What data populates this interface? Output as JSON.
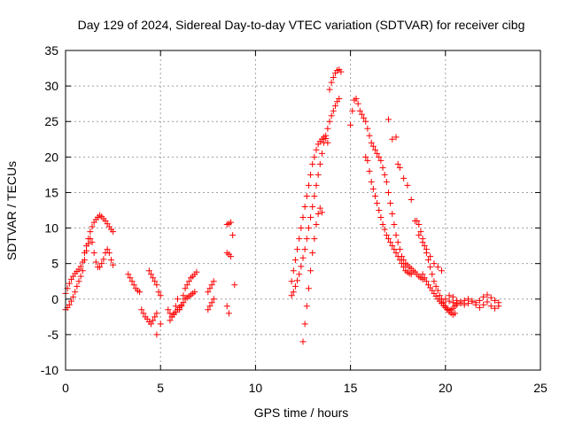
{
  "chart_data": {
    "type": "scatter",
    "title": "Day 129 of 2024, Sidereal Day-to-day VTEC variation (SDTVAR) for receiver cibg",
    "xlabel": "GPS time / hours",
    "ylabel": "SDTVAR / TECUs",
    "xlim": [
      0,
      25
    ],
    "ylim": [
      -10,
      35
    ],
    "xticks": [
      0,
      5,
      10,
      15,
      20,
      25
    ],
    "yticks": [
      -10,
      -5,
      0,
      5,
      10,
      15,
      20,
      25,
      30,
      35
    ],
    "grid": true,
    "marker": "+",
    "color": "#ff0000",
    "series": [
      {
        "name": "s01",
        "x": [
          0.0,
          0.1,
          0.2,
          0.3,
          0.4,
          0.5,
          0.6,
          0.7,
          0.8,
          0.9,
          1.0,
          1.1,
          1.2,
          1.3,
          1.4,
          1.5,
          1.6,
          1.7,
          1.8,
          1.9,
          2.0,
          2.1,
          2.2,
          2.3,
          2.4,
          2.5
        ],
        "y": [
          0.8,
          1.5,
          2.2,
          2.8,
          3.2,
          3.6,
          3.9,
          4.2,
          4.6,
          5.2,
          6.5,
          7.5,
          8.5,
          9.5,
          10.2,
          10.8,
          11.2,
          11.5,
          11.8,
          11.6,
          11.3,
          11.0,
          10.6,
          10.2,
          9.8,
          9.5
        ]
      },
      {
        "name": "s02",
        "x": [
          0.0,
          0.1,
          0.2,
          0.3,
          0.4,
          0.5,
          0.6,
          0.7,
          0.8,
          0.9,
          1.0,
          1.1,
          1.2,
          1.3,
          1.4,
          1.5,
          1.6,
          1.7,
          1.8,
          1.9,
          2.0,
          2.1,
          2.2,
          2.3,
          2.4,
          2.5
        ],
        "y": [
          -1.5,
          -1.2,
          -0.8,
          -0.3,
          0.3,
          1.0,
          1.8,
          2.5,
          3.2,
          4.0,
          5.5,
          6.8,
          7.8,
          8.5,
          8.0,
          6.5,
          5.2,
          4.5,
          4.5,
          5.0,
          5.6,
          6.5,
          7.0,
          6.5,
          5.5,
          4.8
        ]
      },
      {
        "name": "s03",
        "x": [
          3.3,
          3.4,
          3.5,
          3.6,
          3.7,
          3.8,
          3.9,
          4.0,
          4.1,
          4.2,
          4.3,
          4.4,
          4.5,
          4.6,
          4.7,
          4.8
        ],
        "y": [
          3.5,
          3.0,
          2.5,
          2.0,
          1.5,
          1.2,
          1.0,
          -1.5,
          -2.0,
          -2.5,
          -2.8,
          -3.2,
          -3.5,
          -3.0,
          -2.5,
          -2.0
        ]
      },
      {
        "name": "s04",
        "x": [
          4.4,
          4.5,
          4.6,
          4.7,
          4.8,
          4.9,
          5.0
        ],
        "y": [
          4.0,
          3.5,
          3.0,
          2.5,
          2.0,
          1.0,
          0.5
        ]
      },
      {
        "name": "s05",
        "x": [
          4.8,
          5.0
        ],
        "y": [
          -5.0,
          -3.5
        ]
      },
      {
        "name": "s06",
        "x": [
          5.4,
          5.5,
          5.6,
          5.7,
          5.8,
          5.9,
          6.0,
          6.1,
          6.2,
          6.3,
          6.4,
          6.5,
          6.6,
          6.7,
          6.8,
          6.9
        ],
        "y": [
          -1.5,
          -2.0,
          -2.5,
          -2.0,
          -1.0,
          0.0,
          -1.5,
          -1.0,
          0.5,
          1.5,
          2.0,
          2.5,
          3.0,
          3.2,
          3.5,
          3.8
        ]
      },
      {
        "name": "s07",
        "x": [
          5.5,
          5.6,
          5.7,
          5.8,
          5.9,
          6.0,
          6.1,
          6.2,
          6.3,
          6.4,
          6.5,
          6.6,
          6.7,
          6.8
        ],
        "y": [
          -3.0,
          -2.5,
          -2.2,
          -1.8,
          -1.5,
          -1.2,
          -0.8,
          -0.5,
          0.0,
          0.2,
          0.4,
          0.6,
          0.8,
          1.0
        ]
      },
      {
        "name": "s08",
        "x": [
          7.5,
          7.6,
          7.7,
          7.8
        ],
        "y": [
          1.0,
          1.5,
          2.0,
          2.5
        ]
      },
      {
        "name": "s09",
        "x": [
          7.5,
          7.6,
          7.7,
          7.8
        ],
        "y": [
          -1.5,
          -1.0,
          -0.5,
          0.0
        ]
      },
      {
        "name": "s10",
        "x": [
          8.5,
          8.6,
          8.7,
          8.8,
          8.9
        ],
        "y": [
          10.5,
          10.6,
          10.8,
          9.0,
          2.0
        ]
      },
      {
        "name": "s11",
        "x": [
          8.5,
          8.6,
          8.7
        ],
        "y": [
          6.5,
          6.3,
          6.0
        ]
      },
      {
        "name": "s12",
        "x": [
          8.5,
          8.6
        ],
        "y": [
          -1.0,
          -2.0
        ]
      },
      {
        "name": "s13",
        "x": [
          11.9,
          12.0,
          12.1,
          12.2,
          12.3,
          12.4,
          12.5,
          12.6,
          12.7,
          12.8,
          12.9,
          13.0,
          13.1,
          13.2,
          13.3,
          13.4,
          13.5,
          13.6,
          13.7,
          13.8,
          13.9,
          14.0,
          14.1,
          14.2,
          14.3,
          14.4
        ],
        "y": [
          0.5,
          1.0,
          1.8,
          2.6,
          3.5,
          4.6,
          5.8,
          7.0,
          8.5,
          10.0,
          11.5,
          13.0,
          14.5,
          16.0,
          17.5,
          19.0,
          20.5,
          22.0,
          23.0,
          24.0,
          25.0,
          25.8,
          26.5,
          27.2,
          27.8,
          28.2
        ]
      },
      {
        "name": "s14",
        "x": [
          11.9,
          12.0,
          12.1,
          12.2,
          12.3,
          12.4,
          12.5,
          12.6,
          12.7,
          12.8,
          12.9,
          13.0,
          13.1,
          13.2,
          13.3,
          13.4,
          13.5,
          13.6,
          13.7,
          13.8
        ],
        "y": [
          2.5,
          4.0,
          5.5,
          7.0,
          8.5,
          10.0,
          11.5,
          13.0,
          14.5,
          16.0,
          17.5,
          19.0,
          20.0,
          21.0,
          21.8,
          22.2,
          22.5,
          22.8,
          22.6,
          22.0
        ]
      },
      {
        "name": "s15",
        "x": [
          12.5,
          12.6,
          12.7,
          12.8,
          12.9,
          13.0,
          13.1,
          13.2,
          13.3,
          13.4,
          13.5
        ],
        "y": [
          -6.0,
          -3.5,
          -1.0,
          1.5,
          4.0,
          6.5,
          8.5,
          10.5,
          12.0,
          12.8,
          12.2
        ]
      },
      {
        "name": "s16",
        "x": [
          13.9,
          14.0,
          14.1,
          14.2,
          14.3,
          14.4,
          14.5
        ],
        "y": [
          29.5,
          30.5,
          31.2,
          31.8,
          32.2,
          32.3,
          32.0
        ]
      },
      {
        "name": "s17",
        "x": [
          15.0,
          15.1,
          15.2,
          15.3,
          15.4,
          15.5,
          15.6,
          15.7,
          15.8,
          15.9,
          16.0,
          16.1,
          16.2,
          16.3,
          16.4,
          16.5,
          16.6,
          16.7,
          16.8,
          16.9,
          17.0,
          17.1,
          17.2,
          17.3,
          17.4,
          17.5,
          17.6,
          17.7,
          17.8,
          17.9,
          18.0,
          18.1,
          18.2,
          18.3,
          18.4,
          18.5,
          18.6,
          18.7,
          18.8
        ],
        "y": [
          24.5,
          26.5,
          28.0,
          28.2,
          27.5,
          26.5,
          26.0,
          25.5,
          25.0,
          24.0,
          23.0,
          22.0,
          21.5,
          21.0,
          20.5,
          20.0,
          19.5,
          18.5,
          17.5,
          16.5,
          15.0,
          13.5,
          12.0,
          10.5,
          9.0,
          8.0,
          7.0,
          6.0,
          5.5,
          5.0,
          4.8,
          4.5,
          4.3,
          4.0,
          3.8,
          3.5,
          3.2,
          3.0,
          2.8
        ]
      },
      {
        "name": "s18",
        "x": [
          15.8,
          15.9,
          16.0,
          16.1,
          16.2,
          16.3,
          16.4,
          16.5,
          16.6,
          16.7,
          16.8,
          16.9,
          17.0,
          17.1,
          17.2,
          17.3,
          17.4,
          17.5,
          17.6,
          17.7,
          17.8,
          17.9,
          18.0,
          18.1,
          18.2
        ],
        "y": [
          20.0,
          19.5,
          18.0,
          16.5,
          15.5,
          14.5,
          13.5,
          12.5,
          11.5,
          10.5,
          9.8,
          9.0,
          8.5,
          8.0,
          7.5,
          7.0,
          6.5,
          6.0,
          5.5,
          5.0,
          4.5,
          4.0,
          3.8,
          3.6,
          3.5
        ]
      },
      {
        "name": "s19",
        "x": [
          17.0,
          17.2,
          17.4,
          17.5,
          17.6,
          17.8,
          18.0,
          18.2,
          18.4,
          18.6,
          18.8,
          19.0,
          19.2,
          19.4,
          19.6,
          19.8
        ],
        "y": [
          25.3,
          22.5,
          22.8,
          19.0,
          18.5,
          17.0,
          16.0,
          14.0,
          11.0,
          9.0,
          8.0,
          7.0,
          6.0,
          5.0,
          4.5,
          4.0
        ]
      },
      {
        "name": "s20",
        "x": [
          18.5,
          18.6,
          18.7,
          18.8,
          18.9,
          19.0,
          19.1,
          19.2,
          19.3,
          19.4,
          19.5,
          19.6,
          19.7,
          19.8,
          19.9,
          20.0,
          20.1,
          20.2,
          20.3,
          20.4,
          20.5
        ],
        "y": [
          11.0,
          10.5,
          9.5,
          8.5,
          7.5,
          6.5,
          5.5,
          4.5,
          3.5,
          2.5,
          1.8,
          1.2,
          0.5,
          0.0,
          -0.5,
          -1.0,
          -1.5,
          -1.8,
          -2.0,
          -2.2,
          -2.0
        ]
      },
      {
        "name": "s21",
        "x": [
          18.8,
          18.9,
          19.0,
          19.1,
          19.2,
          19.3,
          19.4,
          19.5,
          19.6,
          19.7,
          19.8,
          19.9,
          20.0,
          20.1,
          20.2,
          20.3,
          20.4,
          20.5,
          20.6
        ],
        "y": [
          3.5,
          3.0,
          2.5,
          2.0,
          1.6,
          1.2,
          0.8,
          0.4,
          0.0,
          -0.3,
          -0.6,
          -0.9,
          -1.2,
          -1.4,
          -1.6,
          -1.5,
          -1.3,
          -1.0,
          -0.8
        ]
      },
      {
        "name": "s22",
        "x": [
          20.0,
          20.2,
          20.4,
          20.6,
          20.8,
          21.0,
          21.2,
          21.4,
          21.6,
          21.8,
          22.0,
          22.2,
          22.4,
          22.6,
          22.8
        ],
        "y": [
          0.0,
          -0.3,
          -0.5,
          -0.6,
          -0.4,
          -0.2,
          0.0,
          -0.3,
          -0.5,
          -0.2,
          0.3,
          0.6,
          0.2,
          -0.2,
          -0.5
        ]
      },
      {
        "name": "s23",
        "x": [
          20.2,
          20.4,
          20.6,
          20.8,
          21.0,
          21.2,
          21.4,
          21.6,
          21.8,
          22.0,
          22.2,
          22.4,
          22.6,
          22.8
        ],
        "y": [
          0.5,
          0.3,
          -0.2,
          -0.6,
          -0.8,
          -0.6,
          -0.3,
          -0.8,
          -1.2,
          -0.8,
          -0.4,
          -1.0,
          -1.3,
          -1.0
        ]
      }
    ]
  }
}
